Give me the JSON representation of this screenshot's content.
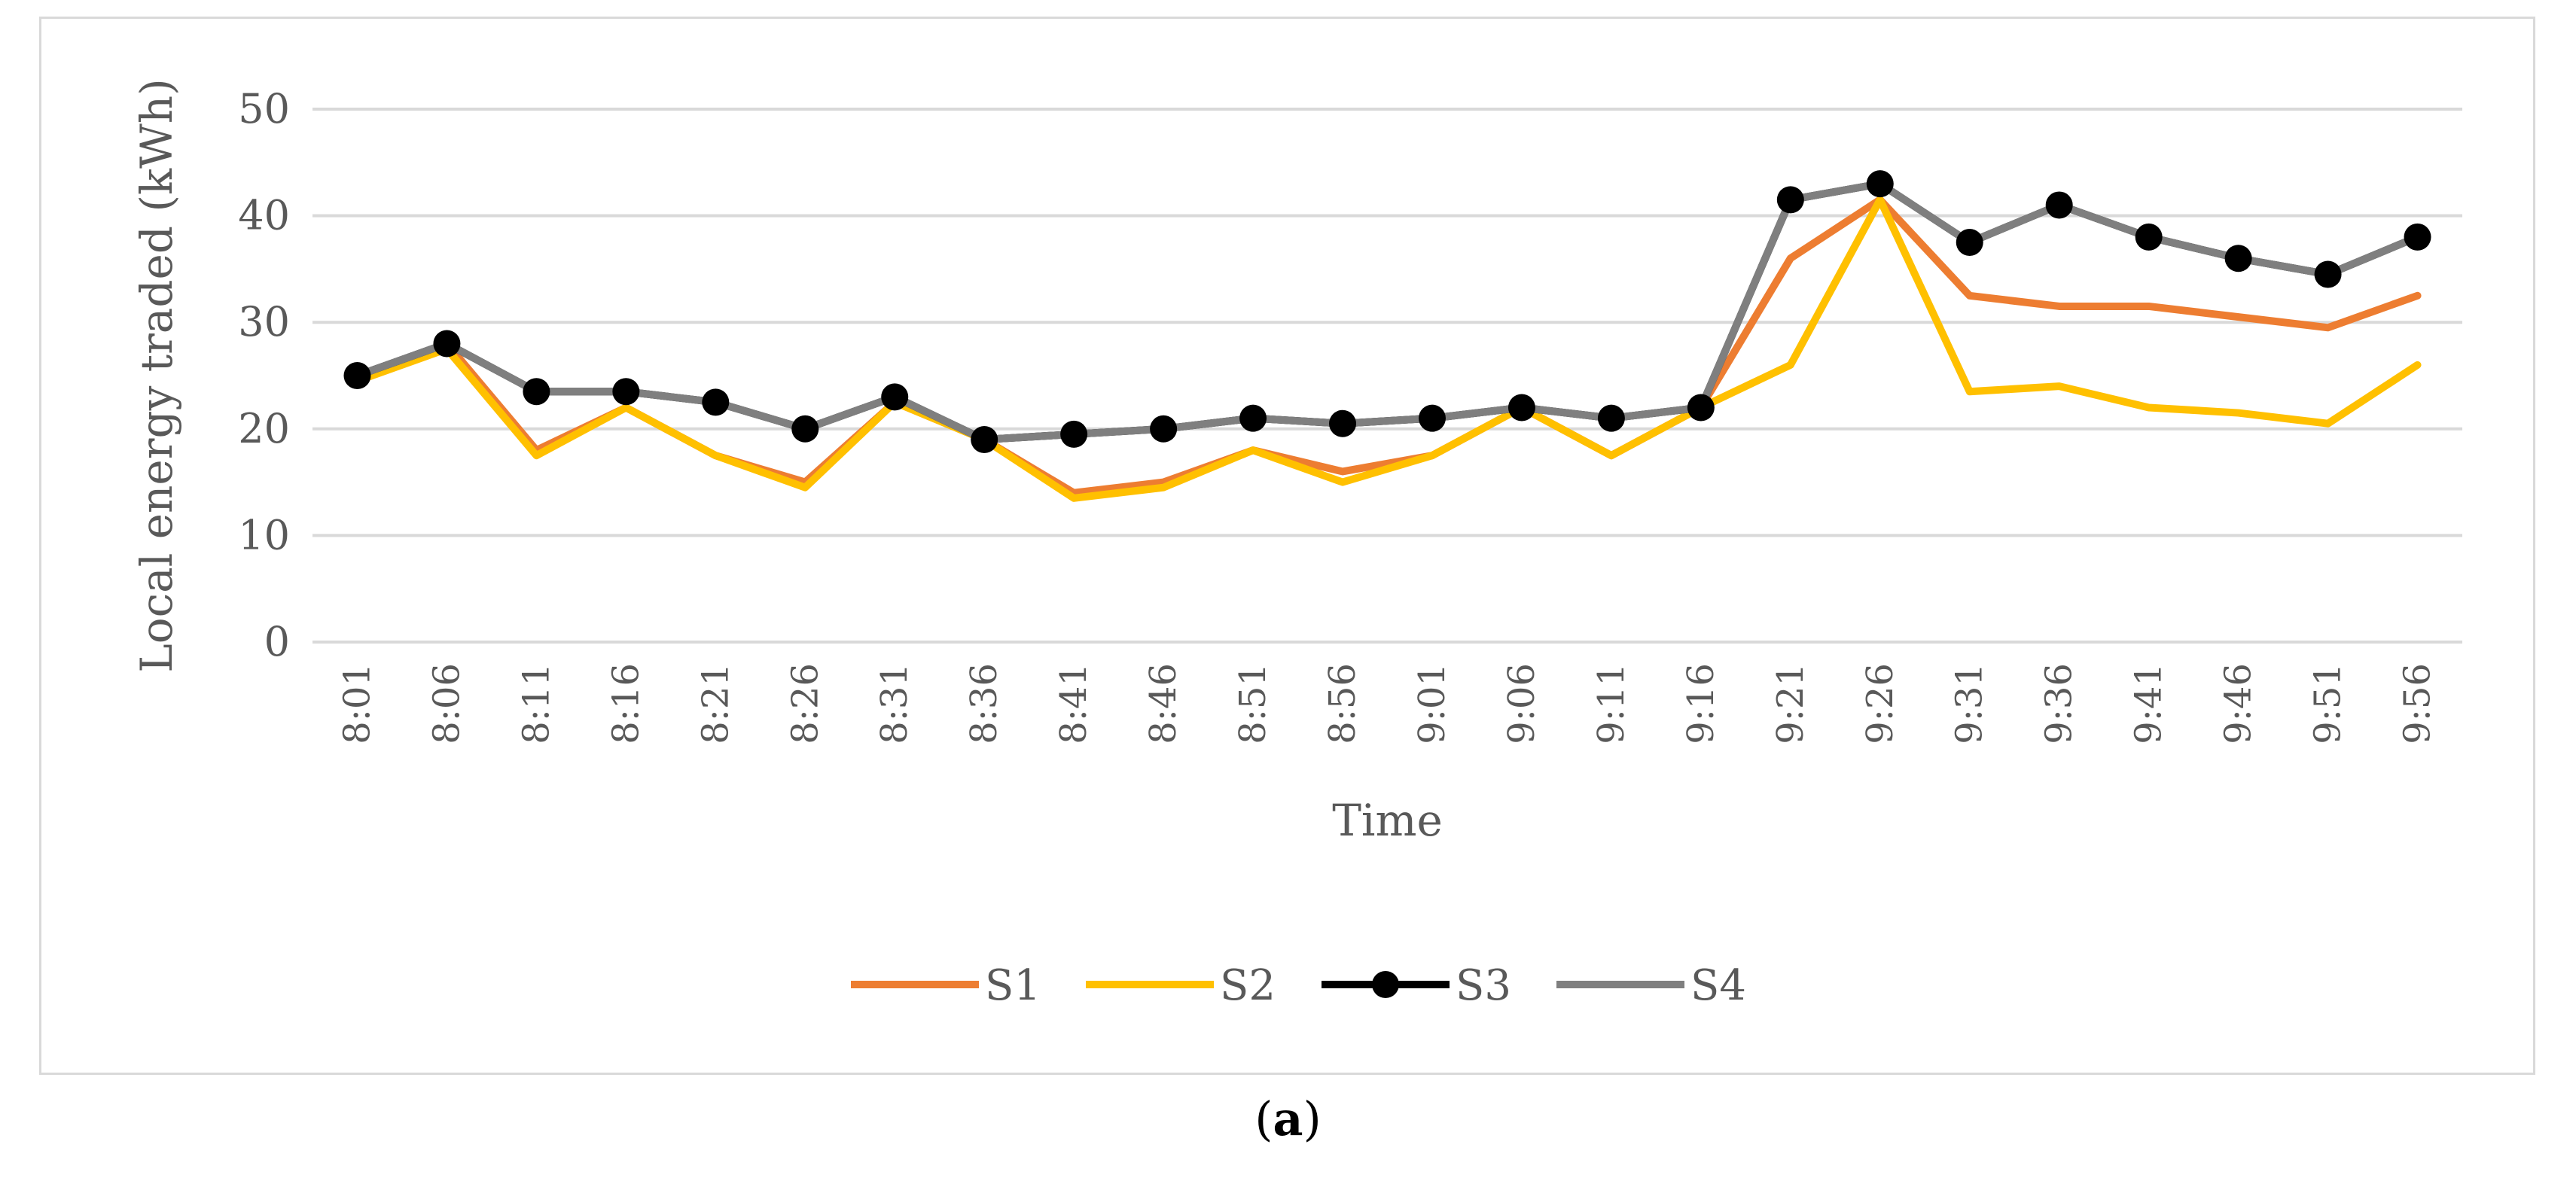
{
  "chart_data": {
    "type": "line",
    "title": "",
    "xlabel": "Time",
    "ylabel": "Local energy traded (kWh)",
    "ylim": [
      0,
      50
    ],
    "yticks": [
      0,
      10,
      20,
      30,
      40,
      50
    ],
    "grid": true,
    "legend_position": "bottom",
    "categories": [
      "8:01",
      "8:06",
      "8:11",
      "8:16",
      "8:21",
      "8:26",
      "8:31",
      "8:36",
      "8:41",
      "8:46",
      "8:51",
      "8:56",
      "9:01",
      "9:06",
      "9:11",
      "9:16",
      "9:21",
      "9:26",
      "9:31",
      "9:36",
      "9:41",
      "9:46",
      "9:51",
      "9:56"
    ],
    "series": [
      {
        "name": "S1",
        "color": "#ed7d31",
        "marker": false,
        "values": [
          24.5,
          28,
          18,
          22,
          17.5,
          15,
          22.5,
          19,
          14,
          15,
          18,
          16,
          17.5,
          22,
          17.5,
          22,
          36,
          41.5,
          32.5,
          31.5,
          31.5,
          30.5,
          29.5,
          32.5
        ]
      },
      {
        "name": "S2",
        "color": "#ffc000",
        "marker": false,
        "values": [
          24.5,
          27.5,
          17.5,
          22,
          17.5,
          14.5,
          22.5,
          19,
          13.5,
          14.5,
          18,
          15,
          17.5,
          22,
          17.5,
          22,
          26,
          41.5,
          23.5,
          24,
          22,
          21.5,
          20.5,
          26
        ]
      },
      {
        "name": "S3",
        "color": "#000000",
        "marker": true,
        "values": [
          25,
          28,
          23.5,
          23.5,
          22.5,
          20,
          23,
          19,
          19.5,
          20,
          21,
          20.5,
          21,
          22,
          21,
          22,
          41.5,
          43,
          37.5,
          41,
          38,
          36,
          34.5,
          38
        ]
      },
      {
        "name": "S4",
        "color": "#7f7f7f",
        "marker": false,
        "values": [
          25,
          28,
          23.5,
          23.5,
          22.5,
          20,
          23,
          19,
          19.5,
          20,
          21,
          20.5,
          21,
          22,
          21,
          22,
          41.5,
          43,
          37.5,
          41,
          38,
          36,
          34.5,
          38
        ]
      }
    ]
  },
  "caption": {
    "open": "(",
    "label": "a",
    "close": ")"
  }
}
